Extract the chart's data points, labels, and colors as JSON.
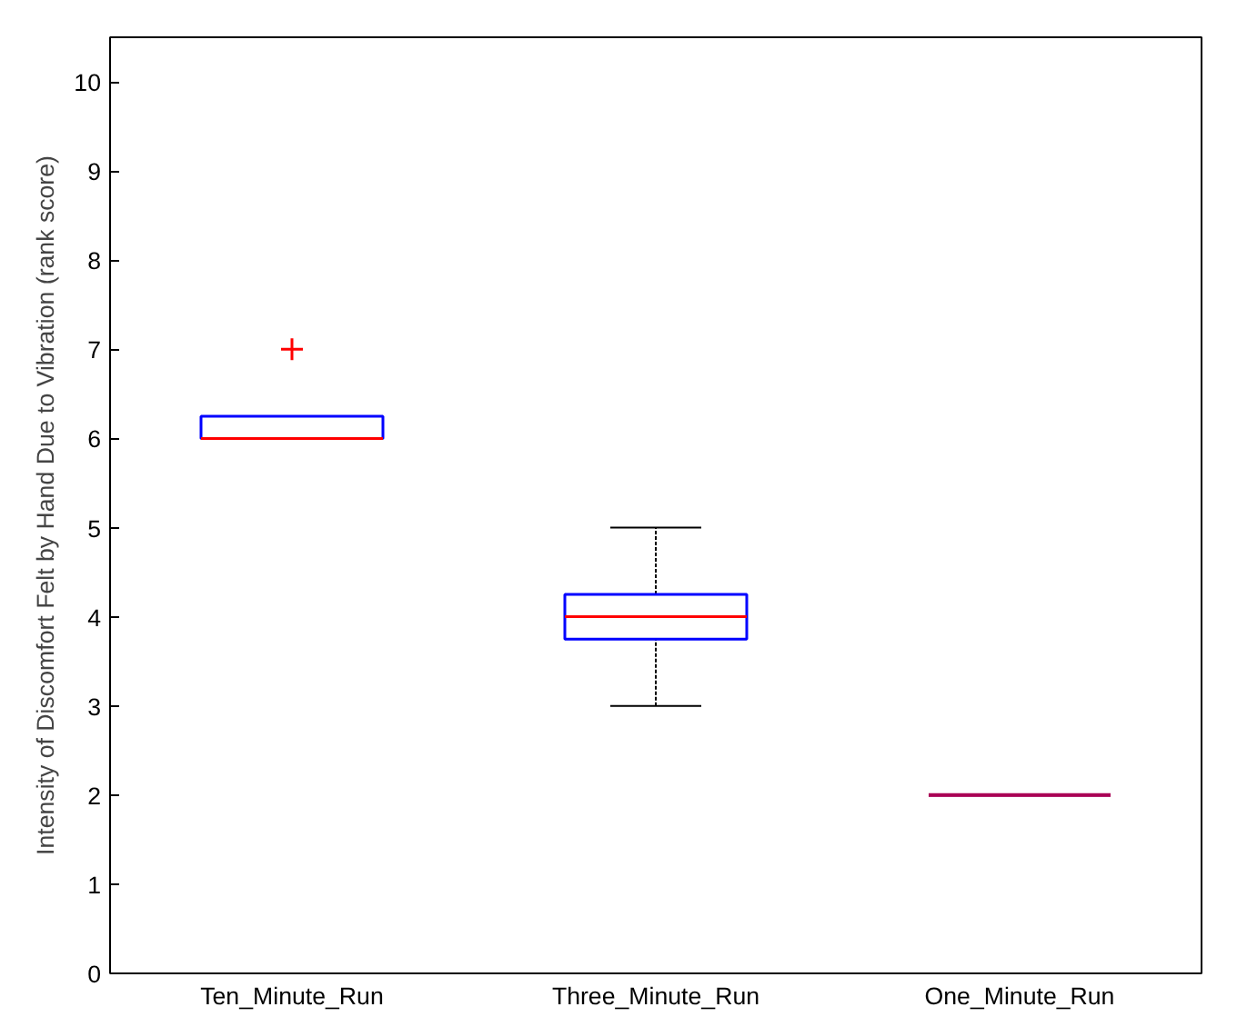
{
  "chart_data": {
    "type": "box",
    "ylabel": "Intensity of Discomfort Felt by Hand Due to Vibration (rank score)",
    "categories": [
      "Ten_Minute_Run",
      "Three_Minute_Run",
      "One_Minute_Run"
    ],
    "boxes": [
      {
        "low": 6,
        "q1": 6,
        "median": 6,
        "q3": 6.25,
        "high": 6.25,
        "outliers": [
          7
        ]
      },
      {
        "low": 3,
        "q1": 3.75,
        "median": 4,
        "q3": 4.25,
        "high": 5
      },
      {
        "low": 2,
        "q1": 2,
        "median": 2,
        "q3": 2,
        "high": 2
      }
    ],
    "color": "#0000ff",
    "ylim": [
      0,
      10.5
    ],
    "yticks": [
      0,
      1,
      2,
      3,
      4,
      5,
      6,
      7,
      8,
      9,
      10
    ],
    "grid": false,
    "marker": "cross"
  }
}
